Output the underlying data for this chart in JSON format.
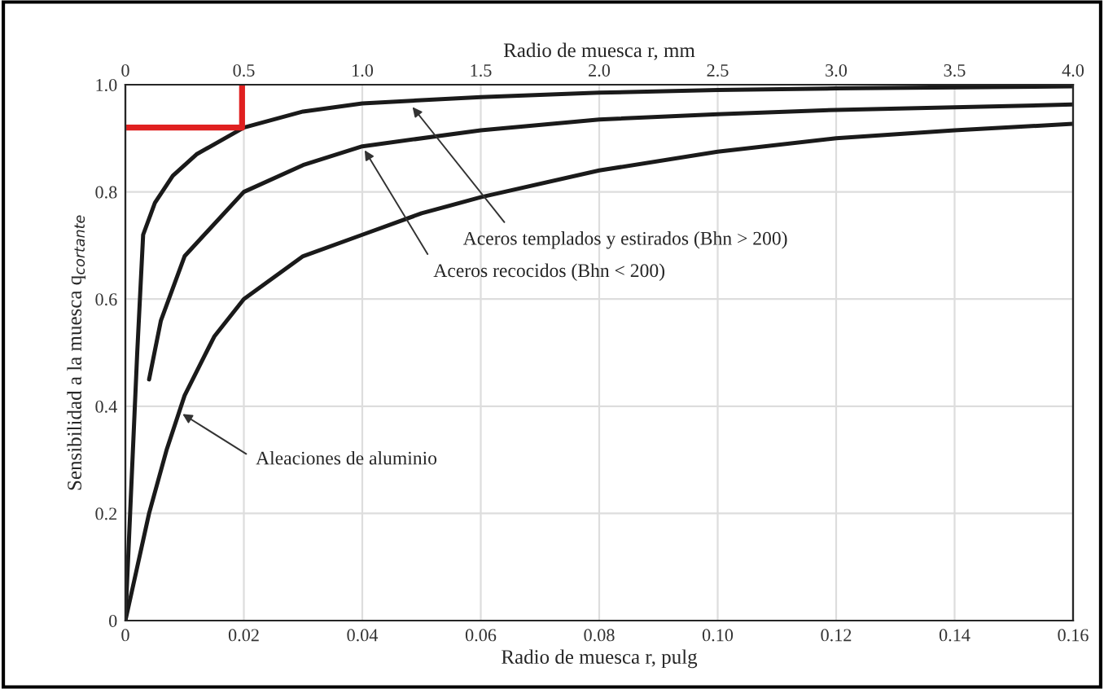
{
  "chart_data": {
    "type": "line",
    "xlabel": "Radio de muesca r, pulg",
    "x2label": "Radio de muesca r, mm",
    "ylabel": "Sensibilidad a la muesca q$_{cortante}$",
    "xlim": [
      0,
      0.16
    ],
    "xticks": [
      0,
      {
        "value": 0.02,
        "label": "0.02"
      },
      {
        "value": 0.04,
        "label": "0.04"
      },
      {
        "value": 0.06,
        "label": "0.06"
      },
      {
        "value": 0.08,
        "label": "0.08"
      },
      {
        "value": 0.1,
        "label": "0.10"
      },
      {
        "value": 0.12,
        "label": "0.12"
      },
      {
        "value": 0.14,
        "label": "0.14"
      },
      {
        "value": 0.16,
        "label": "0.16"
      }
    ],
    "x2lim": [
      0,
      4
    ],
    "x2ticks": [
      0,
      0.5,
      {
        "value": 1,
        "label": "1.0"
      },
      1.5,
      {
        "value": 2,
        "label": "2.0"
      },
      2.5,
      {
        "value": 3,
        "label": "3.0"
      },
      3.5,
      {
        "value": 4,
        "label": "4.0"
      }
    ],
    "ylim": [
      0,
      1
    ],
    "yticks": [
      0,
      0.2,
      0.4,
      0.6,
      0.8,
      {
        "value": 1,
        "label": "1.0"
      }
    ],
    "grid": true,
    "legend": false,
    "series": [
      {
        "color": "#1a1a1a",
        "x": [
          0,
          0.002,
          0.003,
          0.005,
          0.008,
          0.012,
          0.02,
          0.03,
          0.04,
          0.06,
          0.08,
          0.1,
          0.12,
          0.16
        ],
        "values": [
          0,
          0.5,
          0.72,
          0.78,
          0.83,
          0.87,
          0.92,
          0.95,
          0.965,
          0.977,
          0.985,
          0.99,
          0.993,
          0.997
        ]
      },
      {
        "color": "#1a1a1a",
        "x": [
          0.004,
          0.006,
          0.01,
          0.02,
          0.03,
          0.04,
          0.06,
          0.08,
          0.1,
          0.12,
          0.16
        ],
        "values": [
          0.45,
          0.56,
          0.68,
          0.8,
          0.85,
          0.885,
          0.915,
          0.935,
          0.945,
          0.953,
          0.963
        ]
      },
      {
        "color": "#1a1a1a",
        "x": [
          0,
          0.002,
          0.004,
          0.007,
          0.01,
          0.015,
          0.02,
          0.03,
          0.04,
          0.05,
          0.06,
          0.08,
          0.1,
          0.12,
          0.14,
          0.16
        ],
        "values": [
          0,
          0.1,
          0.2,
          0.32,
          0.42,
          0.53,
          0.6,
          0.68,
          0.72,
          0.76,
          0.79,
          0.84,
          0.875,
          0.9,
          0.915,
          0.927
        ]
      },
      {
        "color": "#e02020",
        "x": [
          0,
          0.0197,
          0.0197
        ],
        "values": [
          0.92,
          0.92,
          1.0
        ]
      }
    ],
    "annotations": [
      {
        "text": "Aceros templados y estirados (Bhn > 200)",
        "x": 0.048,
        "y": 0.965
      },
      {
        "text": "Aceros recocidos (Bhn < 200)",
        "x": 0.04,
        "y": 0.885
      },
      {
        "text": "Aleaciones de aluminio",
        "x": 0.009,
        "y": 0.39
      }
    ]
  }
}
